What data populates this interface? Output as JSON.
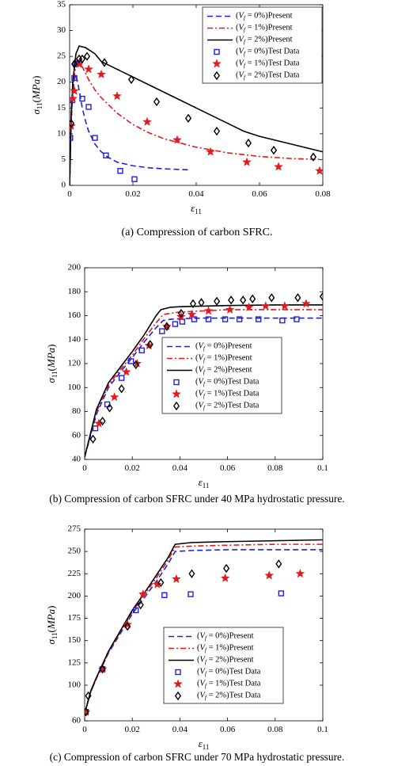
{
  "captions": {
    "a": "(a) Compression of carbon SFRC.",
    "b": "(b) Compression of carbon SFRC under 40 MPa hydrostatic pressure.",
    "c": "(c) Compression of carbon SFRC under 70 MPa hydrostatic pressure."
  },
  "colors": {
    "blue": "#1f1fe6",
    "red": "#e31a1c",
    "black": "#000000"
  },
  "chart_data": [
    {
      "type": "line",
      "xlabel": "ε11",
      "ylabel": "σ11(MPa)",
      "xlim": [
        0,
        0.08
      ],
      "ylim": [
        0,
        35
      ],
      "xticks": [
        0,
        0.02,
        0.04,
        0.06,
        0.08
      ],
      "xtick_labels": [
        "0",
        "0.02",
        "0.04",
        "0.06",
        "0.08"
      ],
      "yticks": [
        0,
        5,
        10,
        15,
        20,
        25,
        30,
        35
      ],
      "ytick_labels": [
        "0",
        "5",
        "10",
        "15",
        "20",
        "25",
        "30",
        "35"
      ],
      "legend_position": "top-right",
      "grid": false,
      "series": [
        {
          "name": "(Vf = 0%)Present",
          "kind": "line",
          "style": "dashed",
          "color": "#1f1fe6",
          "x": [
            0,
            0.0005,
            0.001,
            0.0015,
            0.002,
            0.003,
            0.004,
            0.005,
            0.006,
            0.008,
            0.01,
            0.012,
            0.015,
            0.02,
            0.025,
            0.03,
            0.038
          ],
          "y": [
            0,
            12,
            18,
            20.5,
            21.5,
            18.5,
            15,
            12.5,
            10.5,
            8,
            6.5,
            5.5,
            4.5,
            3.8,
            3.4,
            3.2,
            3.0
          ]
        },
        {
          "name": "(Vf = 1%)Present",
          "kind": "line",
          "style": "dashdot",
          "color": "#e31a1c",
          "x": [
            0,
            0.0005,
            0.001,
            0.002,
            0.003,
            0.004,
            0.006,
            0.008,
            0.01,
            0.015,
            0.02,
            0.025,
            0.03,
            0.04,
            0.05,
            0.06,
            0.07,
            0.08
          ],
          "y": [
            0,
            13,
            19,
            23.5,
            24,
            23,
            20.5,
            18.5,
            17,
            14,
            11.8,
            10.2,
            9,
            7.4,
            6.3,
            5.6,
            5.2,
            5.0
          ]
        },
        {
          "name": "(Vf = 2%)Present",
          "kind": "line",
          "style": "solid",
          "color": "#000000",
          "x": [
            0,
            0.0005,
            0.001,
            0.002,
            0.003,
            0.005,
            0.008,
            0.01,
            0.015,
            0.02,
            0.025,
            0.03,
            0.035,
            0.04,
            0.045,
            0.05,
            0.055,
            0.06,
            0.07,
            0.08
          ],
          "y": [
            0,
            14,
            20,
            25.5,
            27,
            26.7,
            25.5,
            24,
            22.5,
            21,
            19.5,
            18,
            16.5,
            15,
            13.5,
            12,
            10.5,
            9.5,
            8,
            6.5
          ]
        },
        {
          "name": "(Vf = 0%)Test Data",
          "kind": "marker",
          "marker": "square",
          "color": "#1f1fe6",
          "x": [
            0.0002,
            0.0008,
            0.0015,
            0.002,
            0.003,
            0.004,
            0.006,
            0.008,
            0.0115,
            0.016,
            0.0205
          ],
          "y": [
            9.2,
            16.5,
            20.8,
            23.5,
            23.8,
            16.8,
            15.2,
            9.2,
            5.8,
            2.8,
            1.2
          ]
        },
        {
          "name": "(Vf = 1%)Test Data",
          "kind": "marker",
          "marker": "star",
          "color": "#e31a1c",
          "x": [
            0.0005,
            0.001,
            0.0015,
            0.003,
            0.006,
            0.01,
            0.015,
            0.0245,
            0.034,
            0.0445,
            0.056,
            0.066,
            0.079
          ],
          "y": [
            11.5,
            16.8,
            18.3,
            23.5,
            22.5,
            21.5,
            17.3,
            12.3,
            8.8,
            6.5,
            4.5,
            3.6,
            2.8
          ]
        },
        {
          "name": "(Vf = 2%)Test Data",
          "kind": "marker",
          "marker": "diamond",
          "color": "#000000",
          "x": [
            0.0005,
            0.0015,
            0.003,
            0.004,
            0.0055,
            0.011,
            0.0195,
            0.0275,
            0.0375,
            0.0465,
            0.0565,
            0.0645,
            0.077
          ],
          "y": [
            12,
            23.5,
            24.5,
            24.5,
            25,
            23.8,
            20.5,
            16.2,
            13,
            10.5,
            8.2,
            6.8,
            5.5
          ]
        }
      ]
    },
    {
      "type": "line",
      "xlabel": "ε11",
      "ylabel": "σ11(MPa)",
      "xlim": [
        0,
        0.1
      ],
      "ylim": [
        40,
        200
      ],
      "xticks": [
        0,
        0.02,
        0.04,
        0.06,
        0.08,
        0.1
      ],
      "xtick_labels": [
        "0",
        "0.02",
        "0.04",
        "0.06",
        "0.08",
        "0.1"
      ],
      "yticks": [
        40,
        60,
        80,
        100,
        120,
        140,
        160,
        180,
        200
      ],
      "ytick_labels": [
        "40",
        "60",
        "80",
        "100",
        "120",
        "140",
        "160",
        "180",
        "200"
      ],
      "legend_position": "bottom-right",
      "grid": false,
      "series": [
        {
          "name": "(Vf = 0%)Present",
          "kind": "line",
          "style": "dashed",
          "color": "#1f1fe6",
          "x": [
            0,
            0.005,
            0.01,
            0.015,
            0.02,
            0.025,
            0.03,
            0.033,
            0.036,
            0.04,
            0.05,
            0.06,
            0.08,
            0.1
          ],
          "y": [
            42,
            78,
            100,
            113,
            125,
            138,
            150,
            156,
            157,
            157.5,
            158,
            158,
            158,
            158
          ]
        },
        {
          "name": "(Vf = 1%)Present",
          "kind": "line",
          "style": "dashdot",
          "color": "#e31a1c",
          "x": [
            0,
            0.005,
            0.01,
            0.015,
            0.02,
            0.025,
            0.03,
            0.033,
            0.036,
            0.04,
            0.05,
            0.06,
            0.08,
            0.1
          ],
          "y": [
            42,
            80,
            102,
            115,
            127,
            141,
            154,
            161,
            162,
            163,
            164,
            165,
            165,
            165
          ]
        },
        {
          "name": "(Vf = 2%)Present",
          "kind": "line",
          "style": "solid",
          "color": "#000000",
          "x": [
            0,
            0.005,
            0.01,
            0.015,
            0.02,
            0.025,
            0.03,
            0.032,
            0.036,
            0.04,
            0.05,
            0.06,
            0.08,
            0.1
          ],
          "y": [
            42,
            82,
            104,
            117,
            130,
            144,
            160,
            165,
            167,
            167.5,
            168,
            168.5,
            169,
            169
          ]
        },
        {
          "name": "(Vf = 0%)Test Data",
          "kind": "marker",
          "marker": "square",
          "color": "#1f1fe6",
          "x": [
            0.0045,
            0.0095,
            0.0155,
            0.0195,
            0.024,
            0.0325,
            0.038,
            0.041,
            0.046,
            0.052,
            0.059,
            0.065,
            0.073,
            0.083,
            0.089
          ],
          "y": [
            66,
            86,
            108,
            122,
            131,
            147,
            153,
            155,
            157,
            157,
            157,
            157,
            157,
            156,
            157
          ]
        },
        {
          "name": "(Vf = 1%)Test Data",
          "kind": "marker",
          "marker": "star",
          "color": "#e31a1c",
          "x": [
            0.006,
            0.0125,
            0.0175,
            0.022,
            0.027,
            0.0345,
            0.0405,
            0.045,
            0.052,
            0.061,
            0.069,
            0.076,
            0.084,
            0.093
          ],
          "y": [
            70,
            92,
            113,
            120,
            135,
            151,
            159,
            161,
            164,
            165,
            167,
            168,
            168,
            170
          ]
        },
        {
          "name": "(Vf = 2%)Test Data",
          "kind": "marker",
          "marker": "diamond",
          "color": "#000000",
          "x": [
            0.0035,
            0.0075,
            0.0105,
            0.0155,
            0.0215,
            0.0275,
            0.0345,
            0.0405,
            0.0455,
            0.049,
            0.0555,
            0.0615,
            0.0665,
            0.0705,
            0.0785,
            0.0895,
            0.1
          ],
          "y": [
            57,
            72,
            83,
            99,
            119,
            136,
            151,
            162,
            170,
            171,
            172,
            173,
            173,
            174,
            175,
            175,
            176
          ]
        }
      ]
    },
    {
      "type": "line",
      "xlabel": "ε11",
      "ylabel": "σ11(MPa)",
      "xlim": [
        0,
        0.1
      ],
      "ylim": [
        60,
        275
      ],
      "xticks": [
        0,
        0.02,
        0.04,
        0.06,
        0.08,
        0.1
      ],
      "xtick_labels": [
        "0",
        "0.02",
        "0.04",
        "0.06",
        "0.08",
        "0.1"
      ],
      "yticks": [
        60,
        100,
        125,
        150,
        175,
        200,
        225,
        250,
        275
      ],
      "ytick_labels": [
        "60",
        "100",
        "125",
        "150",
        "175",
        "200",
        "225",
        "250",
        "275"
      ],
      "legend_position": "bottom-right",
      "grid": false,
      "series": [
        {
          "name": "(Vf = 0%)Present",
          "kind": "line",
          "style": "dashed",
          "color": "#1f1fe6",
          "x": [
            0,
            0.0025,
            0.005,
            0.01,
            0.015,
            0.02,
            0.025,
            0.03,
            0.035,
            0.038,
            0.045,
            0.06,
            0.08,
            0.1
          ],
          "y": [
            68,
            92,
            108,
            136,
            158,
            180,
            198,
            216,
            236,
            250,
            251,
            252,
            252,
            252
          ]
        },
        {
          "name": "(Vf = 1%)Present",
          "kind": "line",
          "style": "dashdot",
          "color": "#e31a1c",
          "x": [
            0,
            0.0025,
            0.005,
            0.01,
            0.015,
            0.02,
            0.025,
            0.03,
            0.035,
            0.038,
            0.045,
            0.06,
            0.08,
            0.1
          ],
          "y": [
            68,
            92,
            108,
            137,
            160,
            182,
            201,
            220,
            240,
            255,
            256,
            257,
            258,
            258
          ]
        },
        {
          "name": "(Vf = 2%)Present",
          "kind": "line",
          "style": "solid",
          "color": "#000000",
          "x": [
            0,
            0.0025,
            0.005,
            0.01,
            0.015,
            0.02,
            0.025,
            0.03,
            0.035,
            0.038,
            0.045,
            0.06,
            0.08,
            0.1
          ],
          "y": [
            68,
            93,
            109,
            138,
            161,
            184,
            203,
            223,
            243,
            258,
            260,
            261,
            262,
            263
          ]
        },
        {
          "name": "(Vf = 0%)Test Data",
          "kind": "marker",
          "marker": "square",
          "color": "#1f1fe6",
          "x": [
            0.0005,
            0.0075,
            0.0215,
            0.0335,
            0.0445,
            0.0825
          ],
          "y": [
            70,
            118,
            184,
            201,
            202,
            203
          ]
        },
        {
          "name": "(Vf = 1%)Test Data",
          "kind": "marker",
          "marker": "star",
          "color": "#e31a1c",
          "x": [
            0.0005,
            0.0075,
            0.018,
            0.0245,
            0.0305,
            0.0385,
            0.059,
            0.0775,
            0.0905
          ],
          "y": [
            70,
            118,
            168,
            202,
            213,
            219,
            220,
            223,
            225
          ]
        },
        {
          "name": "(Vf = 2%)Test Data",
          "kind": "marker",
          "marker": "diamond",
          "color": "#000000",
          "x": [
            0.0005,
            0.0015,
            0.0075,
            0.018,
            0.0235,
            0.032,
            0.045,
            0.0595,
            0.0815
          ],
          "y": [
            70,
            88,
            118,
            166,
            190,
            215,
            225,
            231,
            236
          ]
        }
      ]
    }
  ]
}
